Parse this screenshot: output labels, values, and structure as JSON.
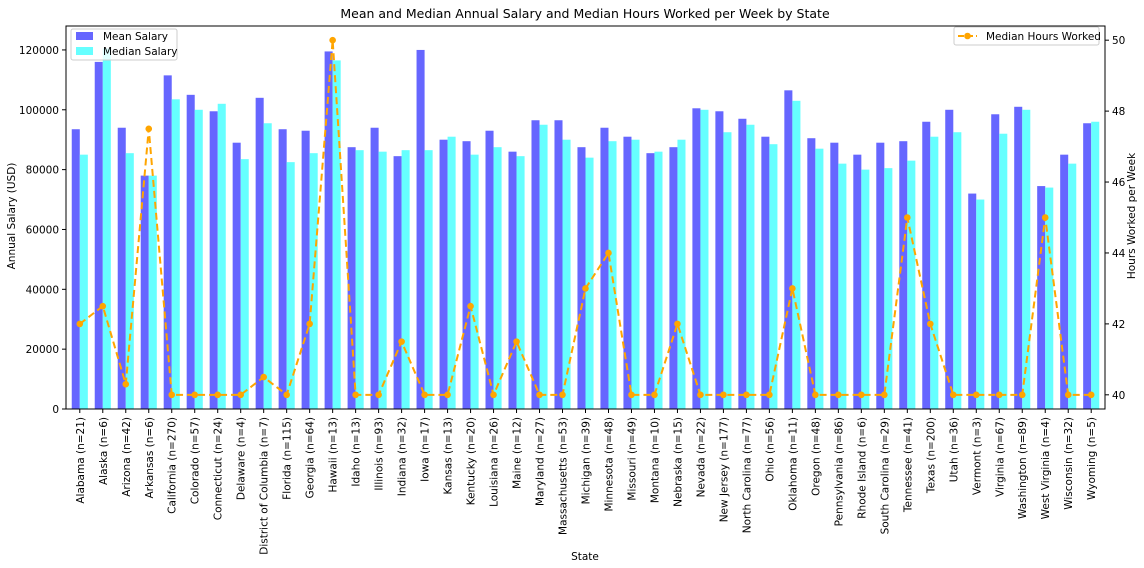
{
  "chart_data": {
    "type": "bar",
    "title": "Mean and Median Annual Salary and Median Hours Worked per Week by State",
    "xlabel": "State",
    "ylabel": "Annual Salary (USD)",
    "y2label": "Hours Worked per Week",
    "ylim": [
      0,
      128000
    ],
    "y2lim": [
      39.6,
      50.4
    ],
    "yticks": [
      0,
      20000,
      40000,
      60000,
      80000,
      100000,
      120000
    ],
    "y2ticks": [
      40,
      42,
      44,
      46,
      48,
      50
    ],
    "grid": false,
    "legend_left_placement": "top-left",
    "legend_right_placement": "top-right",
    "categories": [
      "Alabama (n=21)",
      "Alaska (n=6)",
      "Arizona (n=42)",
      "Arkansas (n=6)",
      "California (n=270)",
      "Colorado (n=57)",
      "Connecticut (n=24)",
      "Delaware (n=4)",
      "District of Columbia (n=7)",
      "Florida (n=115)",
      "Georgia (n=64)",
      "Hawaii (n=13)",
      "Idaho (n=13)",
      "Illinois (n=93)",
      "Indiana (n=32)",
      "Iowa (n=17)",
      "Kansas (n=13)",
      "Kentucky (n=20)",
      "Louisiana (n=26)",
      "Maine (n=12)",
      "Maryland (n=27)",
      "Massachusetts (n=53)",
      "Michigan (n=39)",
      "Minnesota (n=48)",
      "Missouri (n=49)",
      "Montana (n=10)",
      "Nebraska (n=15)",
      "Nevada (n=22)",
      "New Jersey (n=177)",
      "North Carolina (n=77)",
      "Ohio (n=56)",
      "Oklahoma (n=11)",
      "Oregon (n=48)",
      "Pennsylvania (n=86)",
      "Rhode Island (n=6)",
      "South Carolina (n=29)",
      "Tennessee (n=41)",
      "Texas (n=200)",
      "Utah (n=36)",
      "Vermont (n=3)",
      "Virginia (n=67)",
      "Washington (n=89)",
      "West Virginia (n=4)",
      "Wisconsin (n=32)",
      "Wyoming (n=5)"
    ],
    "series": [
      {
        "name": "Mean Salary",
        "type": "bar",
        "axis": "left",
        "color": "#6666ff",
        "values": [
          93500,
          116000,
          94000,
          78000,
          111500,
          105000,
          99500,
          89000,
          104000,
          93500,
          93000,
          119500,
          87500,
          94000,
          84500,
          120000,
          90000,
          89500,
          93000,
          86000,
          96500,
          96500,
          87500,
          94000,
          91000,
          85500,
          87500,
          100500,
          99500,
          97000,
          91000,
          106500,
          90500,
          89000,
          85000,
          89000,
          89500,
          96000,
          100000,
          72000,
          98500,
          101000,
          74500,
          85000,
          95500
        ]
      },
      {
        "name": "Median Salary",
        "type": "bar",
        "axis": "left",
        "color": "#66ffff",
        "values": [
          85000,
          120500,
          85500,
          78000,
          103500,
          100000,
          102000,
          83500,
          95500,
          82500,
          85500,
          116500,
          86500,
          86000,
          86500,
          86500,
          91000,
          85000,
          87500,
          84500,
          95000,
          90000,
          84000,
          89500,
          90000,
          86000,
          90000,
          100000,
          92500,
          95000,
          88500,
          103000,
          87000,
          82000,
          80000,
          80500,
          83000,
          91000,
          92500,
          70000,
          92000,
          100000,
          74000,
          82000,
          96000
        ]
      },
      {
        "name": "Median Hours Worked",
        "type": "line",
        "axis": "right",
        "color": "#ffa500",
        "values": [
          42,
          42.5,
          40.3,
          47.5,
          40,
          40,
          40,
          40,
          40.5,
          40,
          42,
          50,
          40,
          40,
          41.5,
          40,
          40,
          42.5,
          40,
          41.5,
          40,
          40,
          43,
          44,
          40,
          40,
          42,
          40,
          40,
          40,
          40,
          43,
          40,
          40,
          40,
          40,
          45,
          42,
          40,
          40,
          40,
          40,
          45,
          40,
          40
        ]
      }
    ]
  }
}
